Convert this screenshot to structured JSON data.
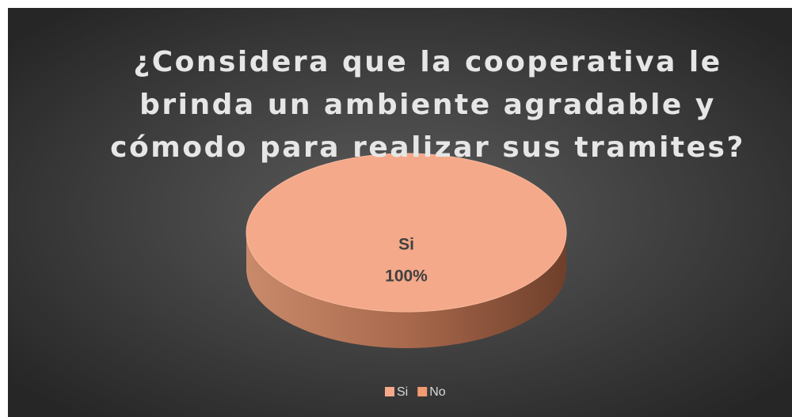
{
  "chart_data": {
    "type": "pie",
    "title": "¿Considera que la cooperativa le\nbrinda un ambiente agradable y\ncómodo para realizar sus tramites?",
    "categories": [
      "Si",
      "No"
    ],
    "values": [
      100,
      0
    ],
    "value_labels": [
      "100%",
      null
    ],
    "colors": [
      "#f4a98a",
      "#f29a72"
    ],
    "legend": "bottom"
  }
}
